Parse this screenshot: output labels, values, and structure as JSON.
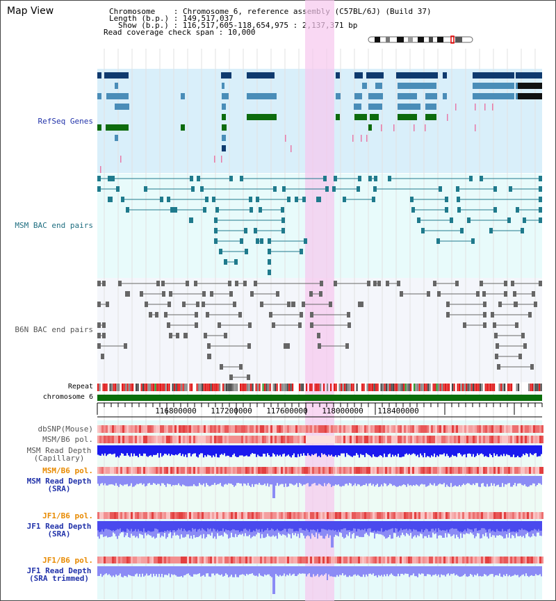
{
  "title": "Map View",
  "info": {
    "chromosome": "Chromosome    : Chromosome 6, reference assembly (C57BL/6J) (Build 37)",
    "length": "Length (b.p.) : 149,517,037",
    "show": "Show (b.p.) : 116,517,605-118,654,975 : 2,137,371 bp",
    "coverage": "Read coverage check span : 10,000"
  },
  "tracks": {
    "refseq": "RefSeq Genes",
    "msm_bac": "MSM BAC end pairs",
    "b6n_bac": "B6N BAC end pairs",
    "repeat": "Repeat",
    "chromosome": "chromosome 6",
    "dbsnp": "dbSNP(Mouse)",
    "msm_b6_pol1": "MSM/B6 pol.",
    "msm_depth_cap_1": "MSM Read Depth",
    "msm_depth_cap_2": "(Capillary)",
    "msm_b6_pol2": "MSM/B6 pol.",
    "msm_depth_sra_1": "MSM Read Depth",
    "msm_depth_sra_2": "(SRA)",
    "jf1_b6_pol1": "JF1/B6 pol.",
    "jf1_depth_sra_1": "JF1 Read Depth",
    "jf1_depth_sra_2": "(SRA)",
    "jf1_b6_pol2": "JF1/B6 pol.",
    "jf1_depth_trim_1": "JF1 Read Depth",
    "jf1_depth_trim_2": "(SRA trimmed)"
  },
  "ruler": {
    "ticks": [
      "116800000",
      "117200000",
      "117600000",
      "118000000",
      "118400000"
    ]
  },
  "colors": {
    "refseq_bg": "#d9effa",
    "msm_bg": "#e8fbfb",
    "b6n_bg": "#f4f6fb",
    "highlight": "#f7d4ef",
    "gene_dark": "#0f3a6e",
    "gene_mid": "#4a8db8",
    "gene_green": "#0d6b0d",
    "bac_msm": "#1f7a8c",
    "bac_b6n": "#666666",
    "depth_msm_cap": "#1a1aee",
    "depth_sra": "#8b8bf5",
    "depth_jf1": "#5a5ae6",
    "snp_red": "#ec8080",
    "chrom_green": "#0a6e0a",
    "label_blue": "#2233aa",
    "label_teal": "#1f6e80",
    "label_gray": "#555555",
    "label_orange": "#e88a00"
  }
}
